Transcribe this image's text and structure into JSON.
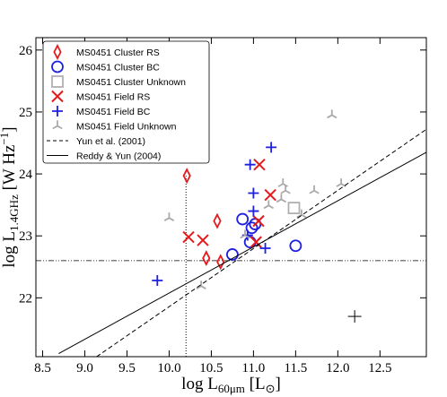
{
  "chart_data": {
    "type": "scatter",
    "xlabel": {
      "main": "log L",
      "sub": "60μm",
      "unit": " [L",
      "sub2": "⊙",
      "close": "]"
    },
    "ylabel": {
      "main": "log L",
      "sub": "1.4GHz",
      "unit": " [W Hz",
      "sup": "−1",
      "close": "]"
    },
    "xlim": [
      8.42,
      13.05
    ],
    "ylim": [
      21.05,
      26.2
    ],
    "xticks": [
      8.5,
      {
        "value": 9,
        "label": "9.0"
      },
      9.5,
      {
        "value": 10,
        "label": "10.0"
      },
      10.5,
      {
        "value": 11,
        "label": "11.0"
      },
      11.5,
      {
        "value": 12,
        "label": "12.0"
      },
      12.5
    ],
    "yticks": [
      22,
      23,
      24,
      25,
      26
    ],
    "legend": "upper left",
    "hline": 22.6,
    "vline": {
      "x": 10.2,
      "ymax": 23.97
    },
    "error_bar": {
      "x": 12.2,
      "y": 21.7,
      "xerr": 0.08,
      "yerr": 0.1
    },
    "series": [
      {
        "name": "MS0451 Cluster RS",
        "color": "#e41a1c",
        "marker": "diamond",
        "x": [
          10.21,
          10.57,
          10.44,
          10.61
        ],
        "values": [
          23.97,
          23.24,
          22.64,
          22.58
        ]
      },
      {
        "name": "MS0451 Cluster BC",
        "color": "#1f1fe0",
        "marker": "circle",
        "x": [
          10.75,
          10.87,
          10.96,
          10.98,
          11.02,
          11.5
        ],
        "values": [
          22.7,
          23.27,
          22.9,
          23.13,
          23.19,
          22.84
        ]
      },
      {
        "name": "MS0451 Cluster Unknown",
        "color": "#b0b0b0",
        "marker": "square",
        "x": [
          11.48
        ],
        "values": [
          23.45
        ]
      },
      {
        "name": "MS0451 Field RS",
        "color": "#e41a1c",
        "marker": "x",
        "x": [
          10.23,
          10.4,
          11.07,
          11.2,
          11.06,
          11.03
        ],
        "values": [
          22.98,
          22.93,
          24.15,
          23.66,
          23.24,
          22.9
        ]
      },
      {
        "name": "MS0451 Field BC",
        "color": "#1f1fe0",
        "marker": "plus",
        "x": [
          9.86,
          10.96,
          11.21,
          11.0,
          11.0,
          11.14,
          10.93
        ],
        "values": [
          22.28,
          24.15,
          24.43,
          23.69,
          23.4,
          22.8,
          23.01
        ]
      },
      {
        "name": "MS0451 Field Unknown",
        "color": "#aaaaaa",
        "marker": "tri",
        "x": [
          11.93,
          10.0,
          10.38,
          11.35,
          11.38,
          11.33,
          11.72,
          12.04,
          11.57,
          11.18,
          10.9
        ],
        "values": [
          24.95,
          23.29,
          22.19,
          23.84,
          23.73,
          23.59,
          23.73,
          23.84,
          23.34,
          23.49,
          23.01
        ]
      },
      {
        "name": "Yun et al. (2001)",
        "color": "#000000",
        "kind": "line",
        "dash": true,
        "x": [
          9.14,
          13.05
        ],
        "values": [
          21.05,
          24.72
        ]
      },
      {
        "name": "Reddy & Yun (2004)",
        "color": "#000000",
        "kind": "line",
        "dash": false,
        "x": [
          8.69,
          13.05
        ],
        "values": [
          21.1,
          24.35
        ]
      }
    ]
  }
}
